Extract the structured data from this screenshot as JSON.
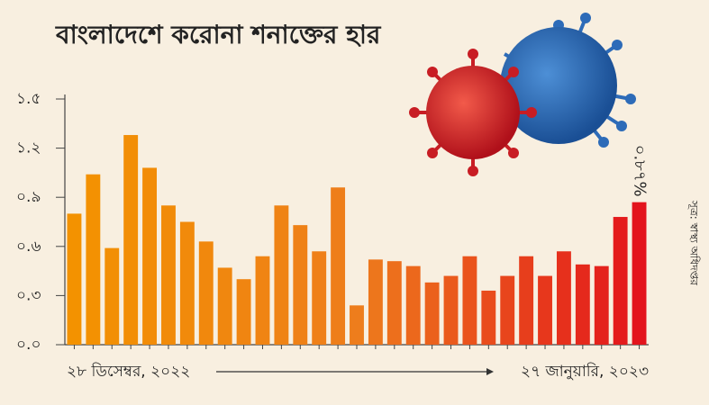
{
  "chart_data": {
    "type": "bar",
    "title": "বাংলাদেশে করোনা শনাক্তের হার",
    "categories": [
      "২৮ ডিসেম্বর, ২০২২",
      null,
      null,
      null,
      null,
      null,
      null,
      null,
      null,
      null,
      null,
      null,
      null,
      null,
      null,
      null,
      null,
      null,
      null,
      null,
      null,
      null,
      null,
      null,
      null,
      null,
      null,
      null,
      null,
      null,
      "২৭ জানুয়ারি, ২০২৩"
    ],
    "values": [
      0.8,
      1.04,
      0.59,
      1.28,
      1.08,
      0.85,
      0.75,
      0.63,
      0.47,
      0.4,
      0.54,
      0.85,
      0.73,
      0.57,
      0.96,
      0.24,
      0.52,
      0.51,
      0.48,
      0.38,
      0.42,
      0.54,
      0.33,
      0.42,
      0.54,
      0.42,
      0.57,
      0.49,
      0.48,
      0.78,
      0.87
    ],
    "value_labels": [
      null,
      null,
      null,
      null,
      null,
      null,
      null,
      null,
      null,
      null,
      null,
      null,
      null,
      null,
      null,
      null,
      null,
      null,
      null,
      null,
      null,
      null,
      null,
      null,
      null,
      null,
      null,
      null,
      null,
      null,
      "০.৮৭%"
    ],
    "color_start": "#f39200",
    "color_mid": "#ee7d1c",
    "color_end": "#e3141c",
    "ylim": [
      0,
      1.5
    ],
    "yticks": [
      {
        "value": 0,
        "label": "০.০"
      },
      {
        "value": 0.3,
        "label": "০.৩"
      },
      {
        "value": 0.6,
        "label": "০.৬"
      },
      {
        "value": 0.9,
        "label": "০.৯"
      },
      {
        "value": 1.2,
        "label": "১.২"
      },
      {
        "value": 1.5,
        "label": "১.৫"
      }
    ],
    "source": "সূত্র: স্বাস্থ্য অধিদপ্তর",
    "title_color": "#1a5ea8",
    "label_color": "#e3141c"
  }
}
